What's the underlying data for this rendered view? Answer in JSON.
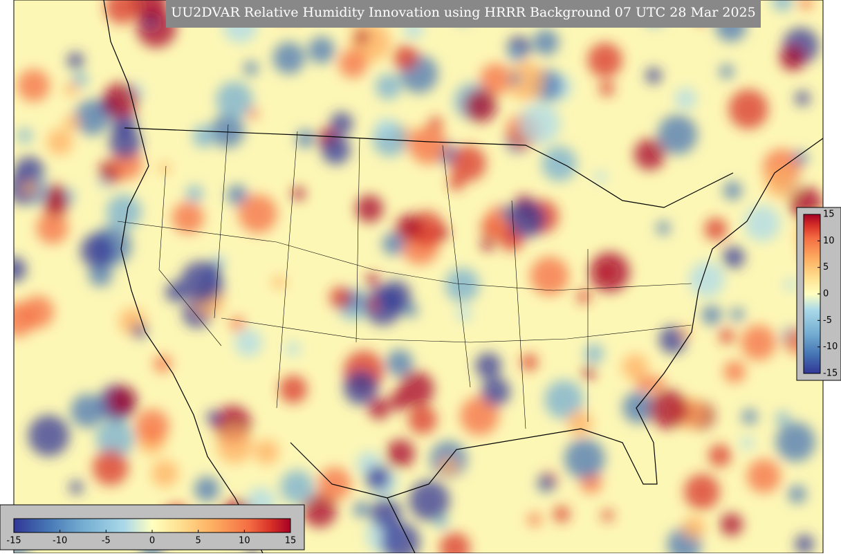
{
  "title": "UU2DVAR Relative Humidity Innovation using HRRR Background 07 UTC 28 Mar 2025",
  "colorbar_bottom": {
    "ticks": [
      -15,
      -10,
      -5,
      0,
      5,
      10,
      15
    ]
  },
  "colorbar_right": {
    "ticks": [
      -15,
      -10,
      -5,
      0,
      5,
      10,
      15
    ]
  }
}
